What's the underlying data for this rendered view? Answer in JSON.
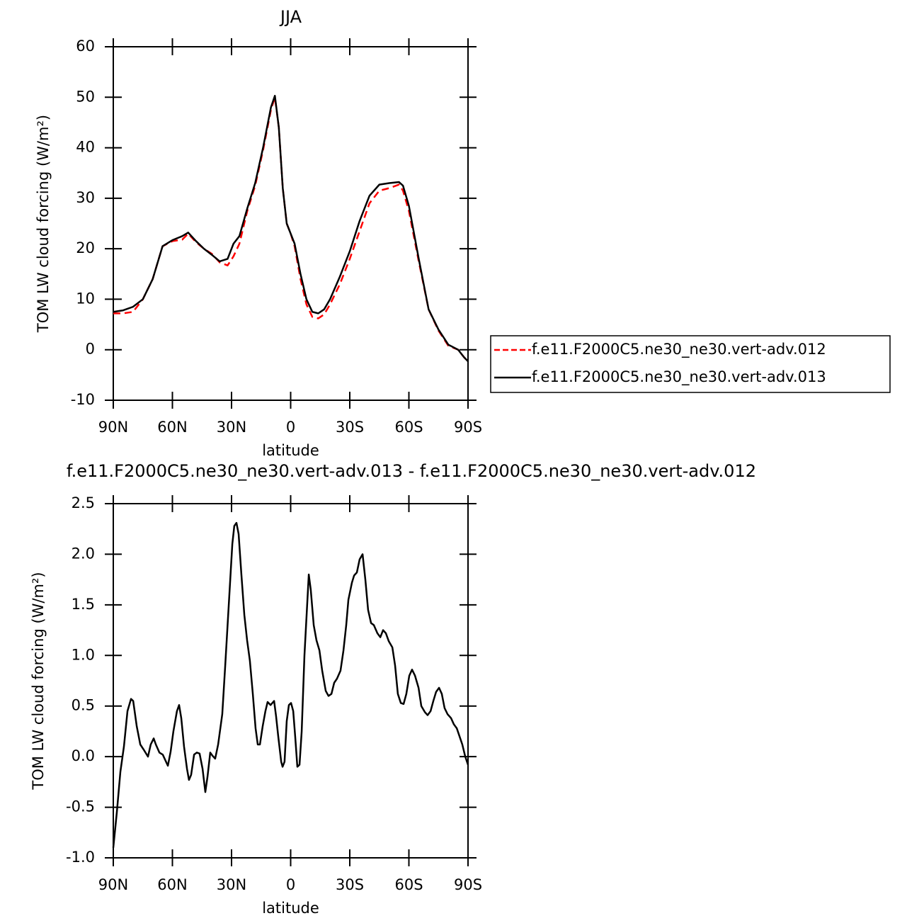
{
  "chart_data": [
    {
      "type": "line",
      "title": "JJA",
      "x_label": "latitude",
      "y_label": "TOM LW cloud forcing (W/m²)",
      "x": [
        90,
        85,
        80,
        75,
        70,
        65,
        60,
        55,
        52,
        48,
        44,
        40,
        36,
        32,
        29,
        26,
        22,
        18,
        14,
        10,
        8,
        6,
        4,
        2,
        0,
        -2,
        -5,
        -8,
        -11,
        -14,
        -17,
        -20,
        -25,
        -30,
        -35,
        -40,
        -45,
        -50,
        -55,
        -57,
        -60,
        -65,
        -70,
        -75,
        -80,
        -85,
        -88,
        -90
      ],
      "series": [
        {
          "name": "f.e11.F2000C5.ne30_ne30.vert-adv.012",
          "color": "#ff0000",
          "line_style": "dashed",
          "values": [
            7.2,
            7.2,
            7.5,
            10,
            14,
            20.5,
            21.5,
            21.8,
            23,
            21.3,
            20,
            19,
            17.3,
            16.7,
            18.5,
            21,
            27.5,
            32.5,
            39.5,
            47.5,
            50,
            44,
            32,
            25,
            23,
            20.5,
            14,
            9,
            6.5,
            6.2,
            7,
            9,
            13,
            18,
            23.5,
            29,
            31.5,
            32,
            32.7,
            31.5,
            27.5,
            17.5,
            8,
            3.8,
            0.8,
            0,
            -1.5,
            -2.3
          ]
        },
        {
          "name": "f.e11.F2000C5.ne30_ne30.vert-adv.013",
          "color": "#000000",
          "line_style": "solid",
          "values": [
            7.5,
            7.8,
            8.5,
            10,
            14,
            20.5,
            21.7,
            22.5,
            23.2,
            21.5,
            20,
            18.8,
            17.5,
            18,
            21,
            22.5,
            28,
            33,
            40,
            48,
            50.3,
            44,
            32,
            25,
            23,
            21,
            15,
            10,
            7.5,
            7.2,
            8,
            10,
            14.5,
            19.5,
            25.5,
            30.5,
            32.7,
            33,
            33.2,
            32.5,
            28.5,
            18,
            8,
            4,
            1,
            0,
            -1.5,
            -2.3
          ]
        }
      ],
      "xlim": [
        90,
        -90
      ],
      "xticks": [
        {
          "value": 90,
          "label": "90N"
        },
        {
          "value": 60,
          "label": "60N"
        },
        {
          "value": 30,
          "label": "30N"
        },
        0,
        {
          "value": -30,
          "label": "30S"
        },
        {
          "value": -60,
          "label": "60S"
        },
        {
          "value": -90,
          "label": "90S"
        }
      ],
      "ylim": [
        -10,
        60
      ],
      "yticks": [
        -10,
        0,
        10,
        20,
        30,
        40,
        50,
        60
      ],
      "legend": "right"
    },
    {
      "type": "line",
      "title": "f.e11.F2000C5.ne30_ne30.vert-adv.013 - f.e11.F2000C5.ne30_ne30.vert-adv.012",
      "x_label": "latitude",
      "y_label": "TOM LW cloud forcing (W/m²)",
      "x": [
        90,
        88.2,
        86.4,
        84.6,
        82.8,
        81,
        79.9,
        78.1,
        76.3,
        74.6,
        72.4,
        71,
        69.5,
        68.4,
        66.6,
        64.9,
        62.3,
        60.9,
        59.5,
        57.7,
        56.6,
        55.5,
        54.1,
        52.6,
        51.6,
        50.5,
        49,
        47.6,
        46.2,
        44.7,
        43.3,
        42.2,
        40.8,
        39.7,
        38.3,
        36.8,
        34.7,
        33.2,
        31.4,
        29.6,
        28.6,
        27.5,
        26.4,
        25,
        23.5,
        22.1,
        20.7,
        19.2,
        17.8,
        16.7,
        15.6,
        14.2,
        12.8,
        11.7,
        10.2,
        8.4,
        7.4,
        6.3,
        4.8,
        4.1,
        3.1,
        2,
        0.9,
        -0.2,
        -1.3,
        -2.3,
        -3.4,
        -4.5,
        -5.6,
        -7,
        -8.1,
        -9.2,
        -10.2,
        -11.7,
        -13.1,
        -14.6,
        -16,
        -17.8,
        -19.2,
        -20.7,
        -22.1,
        -23.5,
        -25.3,
        -26.8,
        -28.2,
        -29.3,
        -31.1,
        -32.2,
        -33.6,
        -35,
        -36.5,
        -37.9,
        -39.3,
        -40.8,
        -42.2,
        -44,
        -45.5,
        -46.9,
        -48.3,
        -49.8,
        -51.6,
        -53,
        -54.4,
        -55.9,
        -57.3,
        -58.7,
        -60.2,
        -61.6,
        -63.1,
        -64.9,
        -66.3,
        -68.1,
        -69.5,
        -71,
        -72.4,
        -73.8,
        -75.3,
        -76.7,
        -78.1,
        -79.6,
        -81.4,
        -82.8,
        -84.3,
        -85.7,
        -87.1,
        -88.6,
        -90
      ],
      "values": [
        -0.9,
        -0.55,
        -0.15,
        0.1,
        0.45,
        0.57,
        0.55,
        0.3,
        0.12,
        0.07,
        0,
        0.12,
        0.18,
        0.12,
        0.04,
        0.02,
        -0.09,
        0.05,
        0.25,
        0.45,
        0.51,
        0.38,
        0.1,
        -0.12,
        -0.23,
        -0.18,
        0.02,
        0.04,
        0.03,
        -0.12,
        -0.35,
        -0.2,
        0.04,
        0.01,
        -0.02,
        0.12,
        0.42,
        0.9,
        1.5,
        2.1,
        2.28,
        2.31,
        2.2,
        1.8,
        1.4,
        1.15,
        0.95,
        0.62,
        0.28,
        0.12,
        0.12,
        0.3,
        0.45,
        0.54,
        0.51,
        0.55,
        0.4,
        0.2,
        -0.05,
        -0.1,
        -0.05,
        0.35,
        0.51,
        0.53,
        0.45,
        0.2,
        -0.1,
        -0.08,
        0.25,
        1,
        1.4,
        1.8,
        1.65,
        1.3,
        1.15,
        1.05,
        0.85,
        0.65,
        0.6,
        0.62,
        0.73,
        0.77,
        0.85,
        1.05,
        1.3,
        1.55,
        1.72,
        1.79,
        1.82,
        1.95,
        2,
        1.75,
        1.45,
        1.32,
        1.3,
        1.22,
        1.18,
        1.25,
        1.22,
        1.14,
        1.08,
        0.9,
        0.62,
        0.53,
        0.52,
        0.62,
        0.8,
        0.86,
        0.8,
        0.68,
        0.5,
        0.44,
        0.41,
        0.45,
        0.55,
        0.64,
        0.68,
        0.62,
        0.48,
        0.42,
        0.38,
        0.32,
        0.28,
        0.2,
        0.12,
        0,
        -0.08
      ],
      "color": "#000000",
      "xlim": [
        90,
        -90
      ],
      "xticks": [
        {
          "value": 90,
          "label": "90N"
        },
        {
          "value": 60,
          "label": "60N"
        },
        {
          "value": 30,
          "label": "30N"
        },
        0,
        {
          "value": -30,
          "label": "30S"
        },
        {
          "value": -60,
          "label": "60S"
        },
        {
          "value": -90,
          "label": "90S"
        }
      ],
      "ylim": [
        -1,
        2.5
      ],
      "yticks": [
        {
          "value": -1,
          "label": "-1.0"
        },
        -0.5,
        {
          "value": 0,
          "label": "0.0"
        },
        0.5,
        {
          "value": 1,
          "label": "1.0"
        },
        1.5,
        {
          "value": 2,
          "label": "2.0"
        },
        2.5
      ]
    }
  ]
}
